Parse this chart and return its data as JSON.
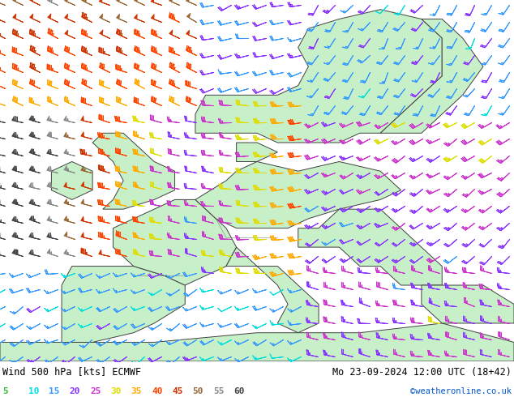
{
  "title_left": "Wind 500 hPa [kts] ECMWF",
  "title_right": "Mo 23-09-2024 12:00 UTC (18+42)",
  "credit": "©weatheronline.co.uk",
  "legend_values": [
    5,
    10,
    15,
    20,
    25,
    30,
    35,
    40,
    45,
    50,
    55,
    60
  ],
  "legend_colors": [
    "#33bb33",
    "#00dddd",
    "#3399ff",
    "#8833ff",
    "#cc33cc",
    "#dddd00",
    "#ffaa00",
    "#ff4400",
    "#cc3300",
    "#996633",
    "#888888",
    "#444444"
  ],
  "bg_color": "#e8e8e8",
  "sea_color": "#e0e0e0",
  "land_color": "#c8f0c8",
  "border_color": "#404040",
  "figsize": [
    6.34,
    4.9
  ],
  "dpi": 100,
  "speed_colors": {
    "0": "#33bb33",
    "5": "#33bb33",
    "10": "#00dddd",
    "15": "#3399ff",
    "20": "#8833ff",
    "25": "#cc33cc",
    "30": "#dddd00",
    "35": "#ffaa00",
    "40": "#ff4400",
    "45": "#cc3300",
    "50": "#996633",
    "55": "#888888",
    "60": "#444444"
  }
}
